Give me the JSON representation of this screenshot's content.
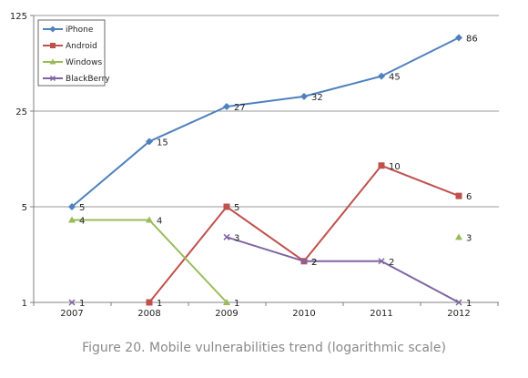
{
  "caption": "Figure 20. Mobile vulnerabilities trend (logarithmic scale)",
  "chart_data": {
    "type": "line",
    "title": "",
    "xlabel": "",
    "ylabel": "",
    "y_scale": "log",
    "y_ticks": [
      1,
      5,
      25,
      125
    ],
    "y_tick_labels": [
      "1",
      "5",
      "25",
      "125"
    ],
    "ylim": [
      1,
      125
    ],
    "categories": [
      "2007",
      "2008",
      "2009",
      "2010",
      "2011",
      "2012"
    ],
    "grid": "horizontal",
    "legend_position": "top-left",
    "series": [
      {
        "name": "iPhone",
        "color": "#4F81BD",
        "marker": "diamond",
        "values": [
          5,
          15,
          27,
          32,
          45,
          86
        ],
        "labels": [
          "5",
          "15",
          "27",
          "32",
          "45",
          "86"
        ]
      },
      {
        "name": "Android",
        "color": "#C0504D",
        "marker": "square",
        "values": [
          null,
          1,
          5,
          2,
          10,
          6
        ],
        "labels": [
          "",
          "1",
          "5",
          "2",
          "10",
          "6"
        ]
      },
      {
        "name": "Windows",
        "color": "#9BBB59",
        "marker": "triangle",
        "values": [
          4,
          4,
          1,
          null,
          null,
          3
        ],
        "labels": [
          "4",
          "4",
          "1",
          "",
          "",
          "3"
        ]
      },
      {
        "name": "BlackBerry",
        "color": "#8064A2",
        "marker": "x",
        "values": [
          1,
          null,
          3,
          2,
          2,
          1
        ],
        "labels": [
          "1",
          "",
          "3",
          "2",
          "2",
          "1"
        ]
      }
    ]
  }
}
